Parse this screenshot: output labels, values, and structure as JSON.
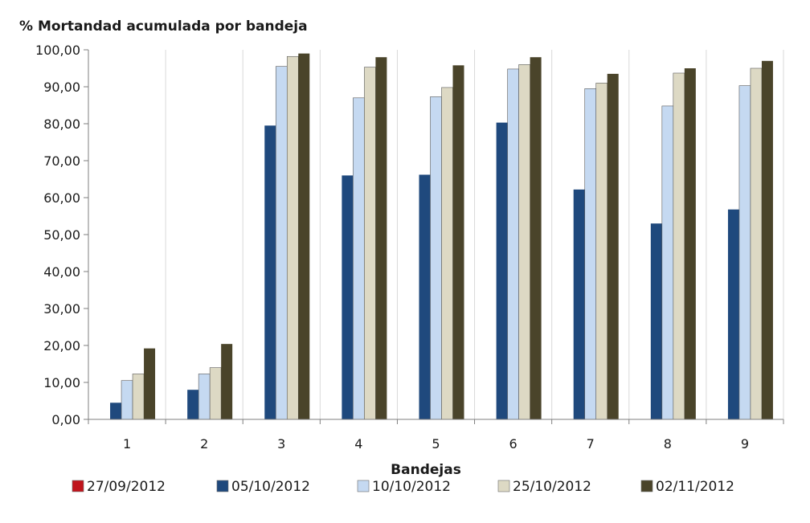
{
  "chart_data": {
    "type": "bar",
    "title": "% Mortandad acumulada por bandeja",
    "xlabel": "Bandejas",
    "ylabel": "",
    "ylim": [
      0,
      100
    ],
    "yticks": [
      "0,00",
      "10,00",
      "20,00",
      "30,00",
      "40,00",
      "50,00",
      "60,00",
      "70,00",
      "80,00",
      "90,00",
      "100,00"
    ],
    "categories": [
      "1",
      "2",
      "3",
      "4",
      "5",
      "6",
      "7",
      "8",
      "9"
    ],
    "grid": "vertical",
    "legend_position": "bottom",
    "series": [
      {
        "name": "27/09/2012",
        "color": "#c0141c",
        "values": [
          0,
          0,
          0,
          0,
          0,
          0,
          0,
          0,
          0
        ]
      },
      {
        "name": "05/10/2012",
        "color": "#1f497d",
        "values": [
          4.5,
          8.0,
          79.5,
          66.0,
          66.2,
          80.3,
          62.2,
          53.0,
          56.8
        ]
      },
      {
        "name": "10/10/2012",
        "color": "#c5d9f1",
        "values": [
          10.5,
          12.3,
          95.5,
          87.0,
          87.3,
          94.8,
          89.5,
          84.8,
          90.3
        ]
      },
      {
        "name": "25/10/2012",
        "color": "#ddd9c4",
        "values": [
          12.3,
          14.0,
          98.2,
          95.3,
          89.8,
          96.0,
          91.0,
          93.7,
          95.0
        ]
      },
      {
        "name": "02/11/2012",
        "color": "#4a442a",
        "values": [
          19.2,
          20.4,
          99.0,
          98.0,
          95.8,
          98.0,
          93.5,
          95.0,
          97.0
        ]
      }
    ]
  }
}
